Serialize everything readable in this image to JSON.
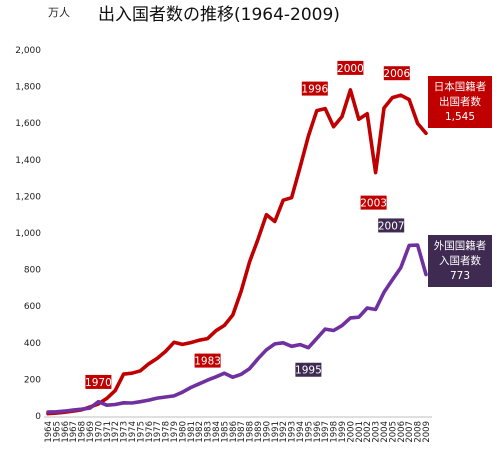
{
  "chart_data": {
    "type": "line",
    "title": "出入国者数の推移(1964-2009)",
    "unit": "万人",
    "ylim": [
      0,
      2000
    ],
    "yticks": [
      "0",
      "200",
      "400",
      "600",
      "800",
      "1,000",
      "1,200",
      "1,400",
      "1,600",
      "1,800",
      "2,000"
    ],
    "x": [
      1964,
      1965,
      1966,
      1967,
      1968,
      1969,
      1970,
      1971,
      1972,
      1973,
      1974,
      1975,
      1976,
      1977,
      1978,
      1979,
      1980,
      1981,
      1982,
      1983,
      1984,
      1985,
      1986,
      1987,
      1988,
      1989,
      1990,
      1991,
      1992,
      1993,
      1994,
      1995,
      1996,
      1997,
      1998,
      1999,
      2000,
      2001,
      2002,
      2003,
      2004,
      2005,
      2006,
      2007,
      2008,
      2009
    ],
    "series": [
      {
        "name": "日本国籍者出国者数",
        "color": "#c00000",
        "values": [
          13,
          16,
          21,
          27,
          34,
          49,
          66,
          96,
          139,
          229,
          234,
          247,
          285,
          315,
          353,
          403,
          391,
          401,
          414,
          423,
          466,
          495,
          552,
          683,
          843,
          966,
          1100,
          1063,
          1179,
          1193,
          1358,
          1530,
          1669,
          1680,
          1581,
          1636,
          1782,
          1622,
          1652,
          1330,
          1683,
          1740,
          1753,
          1729,
          1599,
          1545
        ]
      },
      {
        "name": "外国国籍者入国者数",
        "color": "#7030a0",
        "values": [
          22,
          23,
          27,
          33,
          37,
          43,
          78,
          59,
          63,
          72,
          71,
          78,
          87,
          98,
          104,
          110,
          130,
          156,
          176,
          196,
          214,
          234,
          212,
          228,
          259,
          313,
          362,
          394,
          400,
          381,
          390,
          373,
          424,
          475,
          467,
          494,
          536,
          540,
          590,
          582,
          676,
          745,
          811,
          932,
          934,
          773
        ]
      }
    ],
    "annotations": [
      {
        "text": "1970",
        "series": 0,
        "year": 1970
      },
      {
        "text": "1983",
        "series": 0,
        "year": 1983
      },
      {
        "text": "1996",
        "series": 0,
        "year": 1996
      },
      {
        "text": "2000",
        "series": 0,
        "year": 2000
      },
      {
        "text": "2003",
        "series": 0,
        "year": 2003
      },
      {
        "text": "2006",
        "series": 0,
        "year": 2006
      },
      {
        "text": "1995",
        "series": 1,
        "year": 1995
      },
      {
        "text": "2007",
        "series": 1,
        "year": 2007
      }
    ],
    "legend": [
      {
        "lines": [
          "日本国籍者",
          "出国者数",
          "1,545"
        ],
        "color": "#c00000"
      },
      {
        "lines": [
          "外国国籍者",
          "入国者数",
          "773"
        ],
        "color": "#3f2a52"
      }
    ],
    "grid": false
  }
}
